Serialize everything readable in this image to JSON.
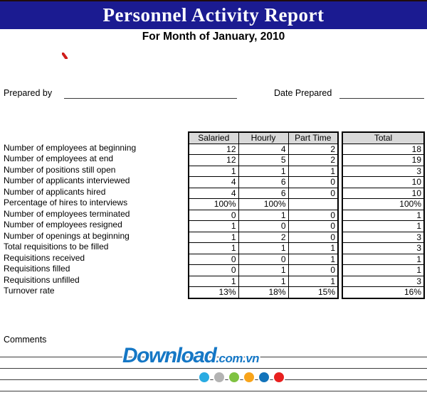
{
  "header": {
    "title": "Personnel Activity Report",
    "subtitle": "For Month of January, 2010"
  },
  "form": {
    "prepared_by_label": "Prepared by",
    "prepared_by_value": "",
    "date_prepared_label": "Date Prepared",
    "date_prepared_value": ""
  },
  "table": {
    "column_headers": [
      "Salaried",
      "Hourly",
      "Part Time",
      "Total"
    ],
    "rows": [
      {
        "label": "Number of employees at beginning",
        "salaried": "12",
        "hourly": "4",
        "part_time": "2",
        "total": "18"
      },
      {
        "label": "Number of employees at end",
        "salaried": "12",
        "hourly": "5",
        "part_time": "2",
        "total": "19"
      },
      {
        "label": "Number of positions still open",
        "salaried": "1",
        "hourly": "1",
        "part_time": "1",
        "total": "3"
      },
      {
        "label": "Number of applicants interviewed",
        "salaried": "4",
        "hourly": "6",
        "part_time": "0",
        "total": "10"
      },
      {
        "label": "Number of applicants hired",
        "salaried": "4",
        "hourly": "6",
        "part_time": "0",
        "total": "10"
      },
      {
        "label": "Percentage of hires to interviews",
        "salaried": "100%",
        "hourly": "100%",
        "part_time": "",
        "total": "100%"
      },
      {
        "label": "Number of employees terminated",
        "salaried": "0",
        "hourly": "1",
        "part_time": "0",
        "total": "1"
      },
      {
        "label": "Number of employees resigned",
        "salaried": "1",
        "hourly": "0",
        "part_time": "0",
        "total": "1"
      },
      {
        "label": "Number of openings at beginning",
        "salaried": "1",
        "hourly": "2",
        "part_time": "0",
        "total": "3"
      },
      {
        "label": "Total requisitions to be filled",
        "salaried": "1",
        "hourly": "1",
        "part_time": "1",
        "total": "3"
      },
      {
        "label": "Requisitions received",
        "salaried": "0",
        "hourly": "0",
        "part_time": "1",
        "total": "1"
      },
      {
        "label": "Requisitions filled",
        "salaried": "0",
        "hourly": "1",
        "part_time": "0",
        "total": "1"
      },
      {
        "label": "Requisitions unfilled",
        "salaried": "1",
        "hourly": "1",
        "part_time": "1",
        "total": "3"
      },
      {
        "label": "Turnover rate",
        "salaried": "13%",
        "hourly": "18%",
        "part_time": "15%",
        "total": "16%"
      }
    ]
  },
  "comments": {
    "label": "Comments"
  },
  "watermark": {
    "brand": "Download",
    "suffix": ".com.vn",
    "dot_colors": [
      "#29abe2",
      "#b3b3b3",
      "#7fc241",
      "#f8a41b",
      "#1273ba",
      "#e8201f"
    ]
  },
  "colors": {
    "header_bar": "#1b1b91",
    "header_top_edge": "#200c0c",
    "table_header_bg": "#d9d9d9",
    "logo_blue": "#1577c5",
    "red_mark": "#cf1d1b",
    "line_color": "#3d3d3d"
  }
}
